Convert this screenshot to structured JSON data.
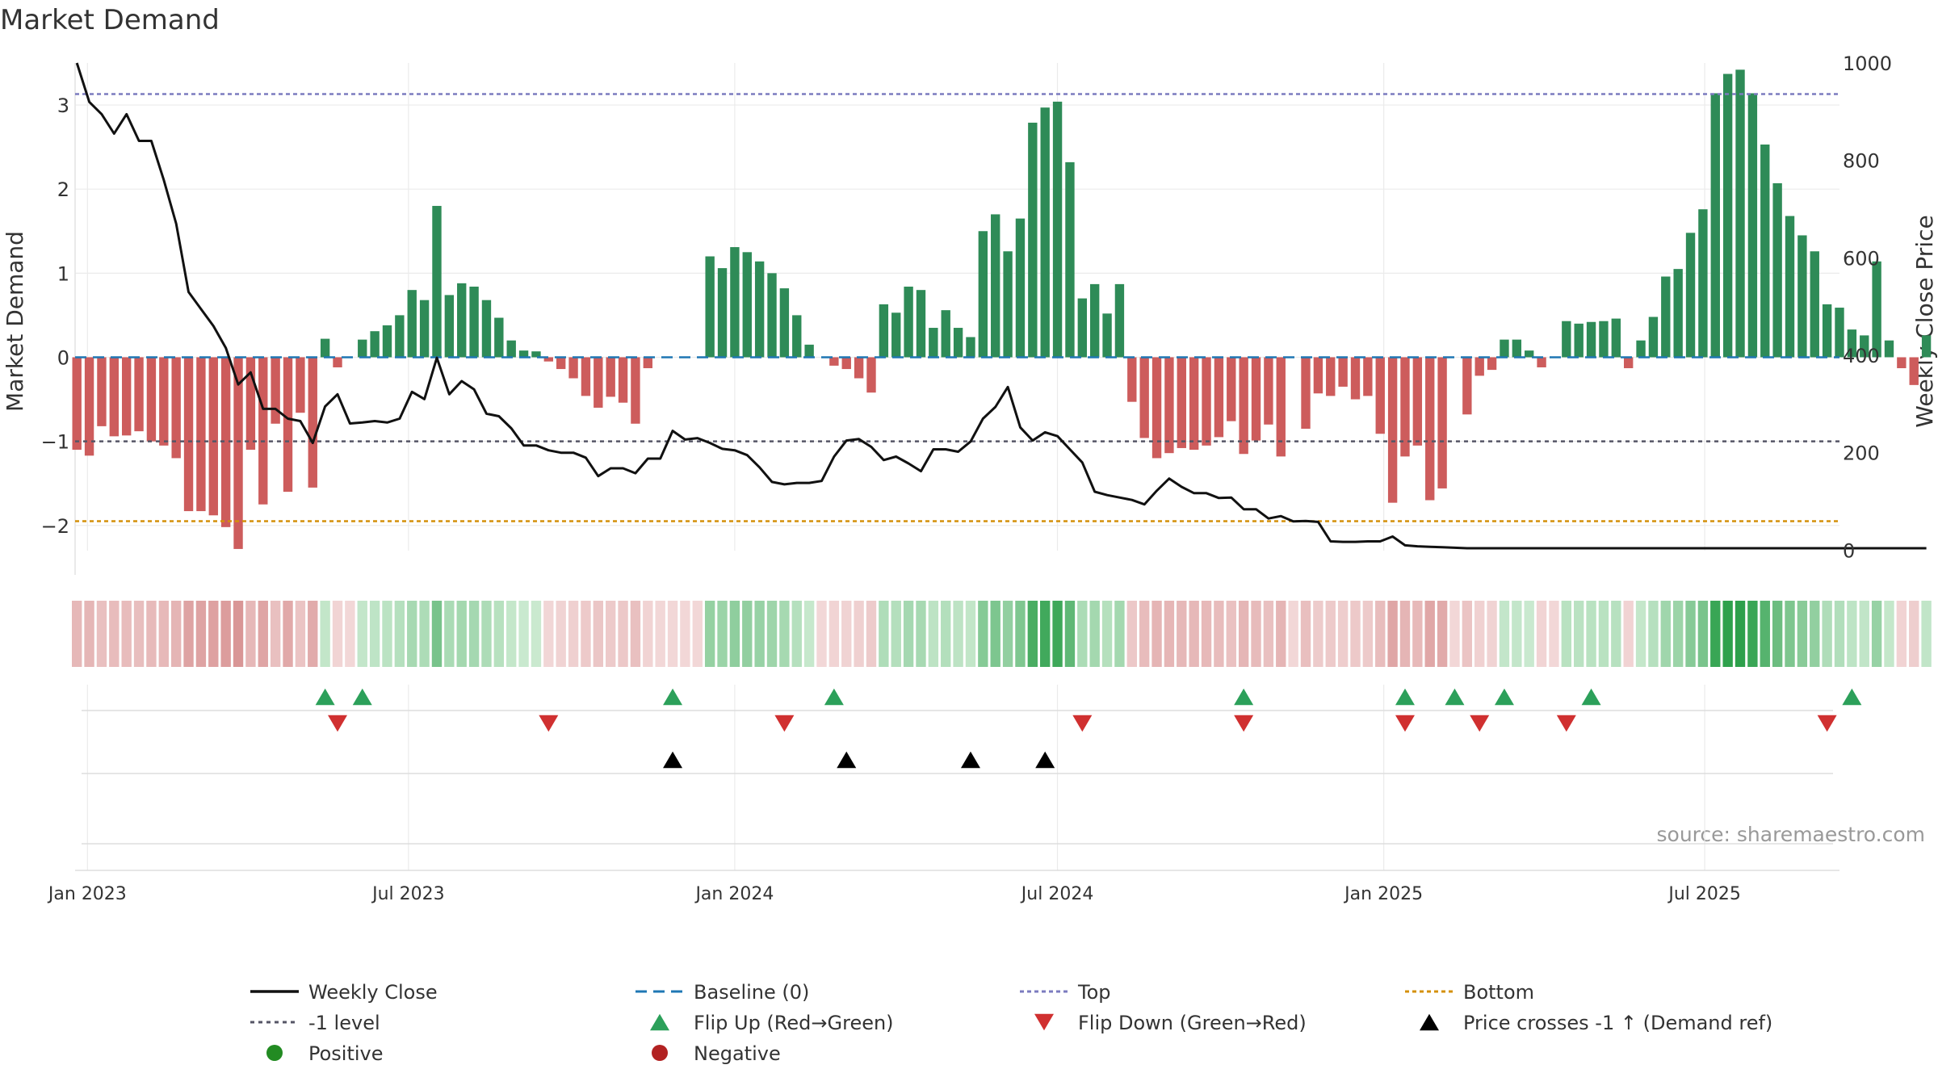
{
  "chart_data": {
    "type": "bar",
    "title": "Market Demand",
    "ylabel": "Market Demand",
    "ylabel_right": "Weekly Close Price",
    "source": "source: sharemaestro.com",
    "ylim": [
      -2.3,
      3.5
    ],
    "ylim_right": [
      -1.0,
      1000
    ],
    "yticks": [
      -2,
      -1,
      0,
      1,
      2,
      3
    ],
    "yticks_right": [
      0,
      200,
      400,
      600,
      800,
      1000
    ],
    "x_range": [
      "2022-12-25",
      "2025-09-15"
    ],
    "x_ticks": [
      {
        "date": "2023-01-01",
        "label": "Jan 2023"
      },
      {
        "date": "2023-07-01",
        "label": "Jul 2023"
      },
      {
        "date": "2024-01-01",
        "label": "Jan 2024"
      },
      {
        "date": "2024-07-01",
        "label": "Jul 2024"
      },
      {
        "date": "2025-01-01",
        "label": "Jan 2025"
      },
      {
        "date": "2025-07-01",
        "label": "Jul 2025"
      }
    ],
    "start_week": "2022-12-26",
    "reference_lines": {
      "top": 3.13,
      "bottom": -1.95,
      "minus_one": -1.0,
      "baseline": 0
    },
    "demand": [
      -1.1,
      -1.17,
      -0.82,
      -0.94,
      -0.93,
      -0.88,
      -1.0,
      -1.05,
      -1.2,
      -1.83,
      -1.83,
      -1.88,
      -2.02,
      -2.28,
      -1.1,
      -1.75,
      -0.79,
      -1.6,
      -0.66,
      -1.55,
      0.22,
      -0.12,
      0.0,
      0.21,
      0.31,
      0.38,
      0.5,
      0.8,
      0.68,
      1.8,
      0.74,
      0.88,
      0.84,
      0.68,
      0.47,
      0.2,
      0.08,
      0.07,
      -0.05,
      -0.14,
      -0.25,
      -0.46,
      -0.6,
      -0.47,
      -0.54,
      -0.79,
      -0.13,
      0.0,
      0.0,
      0.0,
      0.0,
      1.2,
      1.06,
      1.31,
      1.25,
      1.14,
      1.0,
      0.82,
      0.5,
      0.15,
      0.0,
      -0.1,
      -0.14,
      -0.25,
      -0.42,
      0.63,
      0.53,
      0.84,
      0.8,
      0.35,
      0.56,
      0.35,
      0.24,
      1.5,
      1.7,
      1.26,
      1.65,
      2.79,
      2.97,
      3.04,
      2.32,
      0.7,
      0.87,
      0.52,
      0.87,
      -0.53,
      -0.96,
      -1.2,
      -1.14,
      -1.08,
      -1.1,
      -1.05,
      -0.95,
      -0.76,
      -1.15,
      -0.99,
      -0.8,
      -1.18,
      0.0,
      -0.85,
      -0.43,
      -0.46,
      -0.35,
      -0.5,
      -0.46,
      -0.91,
      -1.73,
      -1.18,
      -1.05,
      -1.7,
      -1.56,
      0.0,
      -0.68,
      -0.22,
      -0.15,
      0.21,
      0.21,
      0.08,
      -0.12,
      0.0,
      0.43,
      0.4,
      0.42,
      0.43,
      0.46,
      -0.13,
      0.2,
      0.48,
      0.96,
      1.05,
      1.48,
      1.76,
      3.14,
      3.37,
      3.42,
      3.14,
      2.53,
      2.07,
      1.68,
      1.45,
      1.26,
      0.63,
      0.59,
      0.33,
      0.26,
      1.14,
      0.2,
      -0.13,
      -0.33,
      0.26
    ],
    "price": [
      1000,
      920,
      895,
      855,
      895,
      840,
      840,
      760,
      670,
      530,
      495,
      460,
      415,
      340,
      365,
      290,
      290,
      270,
      265,
      220,
      295,
      320,
      260,
      262,
      265,
      262,
      270,
      325,
      310,
      395,
      320,
      347,
      330,
      280,
      275,
      250,
      215,
      215,
      205,
      200,
      200,
      190,
      152,
      168,
      168,
      158,
      188,
      188,
      245,
      227,
      230,
      220,
      208,
      205,
      195,
      170,
      140,
      135,
      138,
      138,
      142,
      192,
      225,
      228,
      212,
      185,
      192,
      178,
      162,
      207,
      207,
      202,
      223,
      270,
      294,
      335,
      252,
      225,
      242,
      234,
      207,
      180,
      120,
      113,
      108,
      103,
      94,
      122,
      147,
      130,
      117,
      117,
      107,
      108,
      84,
      84,
      65,
      70,
      59,
      60,
      58,
      18,
      17,
      17,
      18,
      18,
      28,
      10,
      8,
      7,
      6,
      5,
      4,
      4,
      4,
      4,
      4,
      4,
      4,
      4,
      4,
      4,
      4,
      4,
      4,
      4,
      4,
      4,
      4,
      4,
      4,
      4,
      4,
      4,
      4,
      4,
      4,
      4,
      4,
      4,
      4,
      4,
      4,
      4,
      4,
      4,
      4,
      4,
      4,
      4
    ],
    "flip_up_weeks": [
      20,
      23,
      48,
      61,
      94,
      107,
      111,
      115,
      122,
      143
    ],
    "flip_down_weeks": [
      21,
      38,
      57,
      81,
      94,
      107,
      113,
      120,
      141
    ],
    "price_cross_weeks": [
      48,
      62,
      72,
      78
    ],
    "legend": [
      "Weekly Close",
      "Baseline (0)",
      "Top",
      "Bottom",
      "-1 level",
      "Flip Up (Red→Green)",
      "Flip Down (Green→Red)",
      "Price crosses -1 ↑ (Demand ref)",
      "Positive",
      "Negative"
    ],
    "colors": {
      "positive": "#2e8b57",
      "negative": "#cd5c5c",
      "price": "#111111",
      "baseline": "#1f77b4",
      "top": "#7b7bbf",
      "bottom": "#d4900a",
      "minus_one": "#555566",
      "flip_up": "#2ca05a",
      "flip_down": "#d03030",
      "cross": "#000000",
      "positive_dot": "#228b22",
      "negative_dot": "#b22222"
    }
  }
}
